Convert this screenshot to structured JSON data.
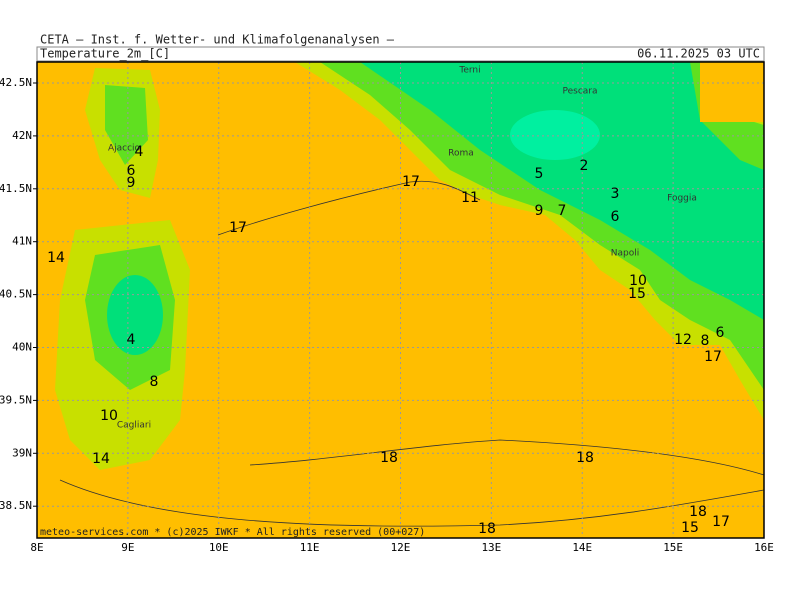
{
  "header": {
    "title": "CETA — Inst. f. Wetter- und Klimafolgenanalysen —",
    "variable": "Temperature_2m_[C]",
    "time": "06.11.2025 03 UTC"
  },
  "lat_labels": [
    "42.5N",
    "42N",
    "41.5N",
    "41N",
    "40.5N",
    "40N",
    "39.5N",
    "39N",
    "38.5N"
  ],
  "lon_labels": [
    "8E",
    "9E",
    "10E",
    "11E",
    "12E",
    "13E",
    "14E",
    "15E",
    "16E"
  ],
  "cities": [
    "Terni",
    "Pescara",
    "Roma",
    "Foggia",
    "Napoli",
    "Ajaccio",
    "Cagliari"
  ],
  "contour_labels": [
    4,
    6,
    9,
    14,
    4,
    8,
    10,
    14,
    17,
    11,
    17,
    5,
    2,
    3,
    6,
    9,
    7,
    10,
    15,
    12,
    8,
    6,
    17,
    18,
    18,
    18,
    18,
    15,
    17
  ],
  "footer": "meteo-services.com * (c)2025 IWKF * All rights reserved (00+027)"
}
